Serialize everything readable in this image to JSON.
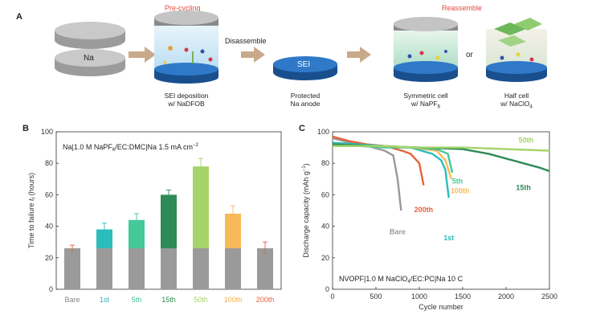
{
  "panelA": {
    "letter": "A",
    "precycling": "Pre-cycling",
    "reassemble": "Reassemble",
    "na_disk": "Na",
    "disassemble": "Disassemble",
    "sei_disk": "SEI",
    "or": "or",
    "caption_sei_deposition_1": "SEI deposition",
    "caption_sei_deposition_2": "w/ NaDFOB",
    "caption_protected_1": "Protected",
    "caption_protected_2": "Na anode",
    "caption_symmetric_1": "Symmetric cell",
    "caption_symmetric_2": "w/ NaPF",
    "caption_symmetric_sub": "6",
    "caption_half_1": "Half cell",
    "caption_half_2": "w/ NaClO",
    "caption_half_sub": "4"
  },
  "chart_data": [
    {
      "panel": "B",
      "type": "bar",
      "annotation_pre": "Na|1.0 M NaPF",
      "annotation_sub": "6",
      "annotation_post": "/EC:DMC|Na 1.5 mA cm",
      "annotation_sup": "−2",
      "ylabel_pre": "Time to failure ",
      "ylabel_italic": "t",
      "ylabel_sub": "f",
      "ylabel_post": " (hours)",
      "ylim": [
        0,
        100
      ],
      "yticks": [
        "0",
        "20",
        "40",
        "60",
        "80",
        "100"
      ],
      "categories": [
        "Bare",
        "1st",
        "5th",
        "15th",
        "50th",
        "100th",
        "200th"
      ],
      "category_colors": [
        "#888888",
        "#2bb3b3",
        "#3bbf95",
        "#2e8b57",
        "#a5d46a",
        "#f5b04e",
        "#e8623c"
      ],
      "base_value": 26,
      "values": [
        26,
        38,
        44,
        60,
        78,
        48,
        26
      ],
      "errors": [
        2,
        4,
        4,
        3,
        5,
        5,
        4
      ],
      "bar_colors": [
        "#9a9a9a",
        "#2bbcbc",
        "#45c99a",
        "#2e8b57",
        "#a5d46a",
        "#f8b95a",
        "#9a9a9a"
      ],
      "base_color": "#9a9a9a"
    },
    {
      "panel": "C",
      "type": "line",
      "annotation_pre": "NVOPF|1.0 M NaClO",
      "annotation_sub": "4",
      "annotation_post": "/EC:PC|Na 10 C",
      "xlabel": "Cycle number",
      "ylabel_pre": "Discharge capacity (mAh g",
      "ylabel_sup": "−1",
      "ylabel_post": ")",
      "xlim": [
        0,
        2500
      ],
      "ylim": [
        0,
        100
      ],
      "xticks": [
        "0",
        "500",
        "1000",
        "1500",
        "2000",
        "2500"
      ],
      "yticks": [
        "0",
        "20",
        "40",
        "60",
        "80",
        "100"
      ],
      "series": [
        {
          "name": "Bare",
          "color": "#999999",
          "label_x": 750,
          "label_y": 35,
          "x": [
            0,
            200,
            400,
            600,
            700,
            750,
            790
          ],
          "y": [
            96,
            93,
            91,
            88,
            85,
            70,
            50
          ]
        },
        {
          "name": "200th",
          "color": "#e8623c",
          "label_x": 1050,
          "label_y": 49,
          "x": [
            0,
            200,
            400,
            600,
            800,
            900,
            1000,
            1050
          ],
          "y": [
            97,
            94,
            92,
            91,
            88,
            86,
            80,
            66
          ]
        },
        {
          "name": "1st",
          "color": "#2bbcbc",
          "label_x": 1340,
          "label_y": 31,
          "x": [
            0,
            300,
            600,
            900,
            1150,
            1250,
            1300,
            1340
          ],
          "y": [
            93,
            92,
            91,
            90,
            86,
            82,
            76,
            58
          ]
        },
        {
          "name": "100th",
          "color": "#f8b95a",
          "label_x": 1470,
          "label_y": 61,
          "x": [
            0,
            300,
            600,
            900,
            1200,
            1300,
            1370
          ],
          "y": [
            92,
            91,
            91,
            90,
            88,
            82,
            70
          ]
        },
        {
          "name": "5th",
          "color": "#45c99a",
          "label_x": 1440,
          "label_y": 67,
          "x": [
            0,
            300,
            600,
            900,
            1200,
            1330,
            1380
          ],
          "y": [
            91,
            91,
            90,
            90,
            89,
            86,
            74
          ]
        },
        {
          "name": "15th",
          "color": "#2e8b57",
          "label_x": 2200,
          "label_y": 63,
          "x": [
            0,
            500,
            1000,
            1500,
            1800,
            2000,
            2200,
            2400,
            2500
          ],
          "y": [
            92,
            91,
            90,
            89,
            86,
            83,
            80,
            77,
            75
          ]
        },
        {
          "name": "50th",
          "color": "#a5d46a",
          "label_x": 2230,
          "label_y": 93,
          "x": [
            0,
            500,
            1000,
            1500,
            2000,
            2500
          ],
          "y": [
            91,
            91,
            90,
            90,
            89,
            88
          ]
        }
      ]
    }
  ],
  "panel_letters": {
    "b": "B",
    "c": "C"
  }
}
